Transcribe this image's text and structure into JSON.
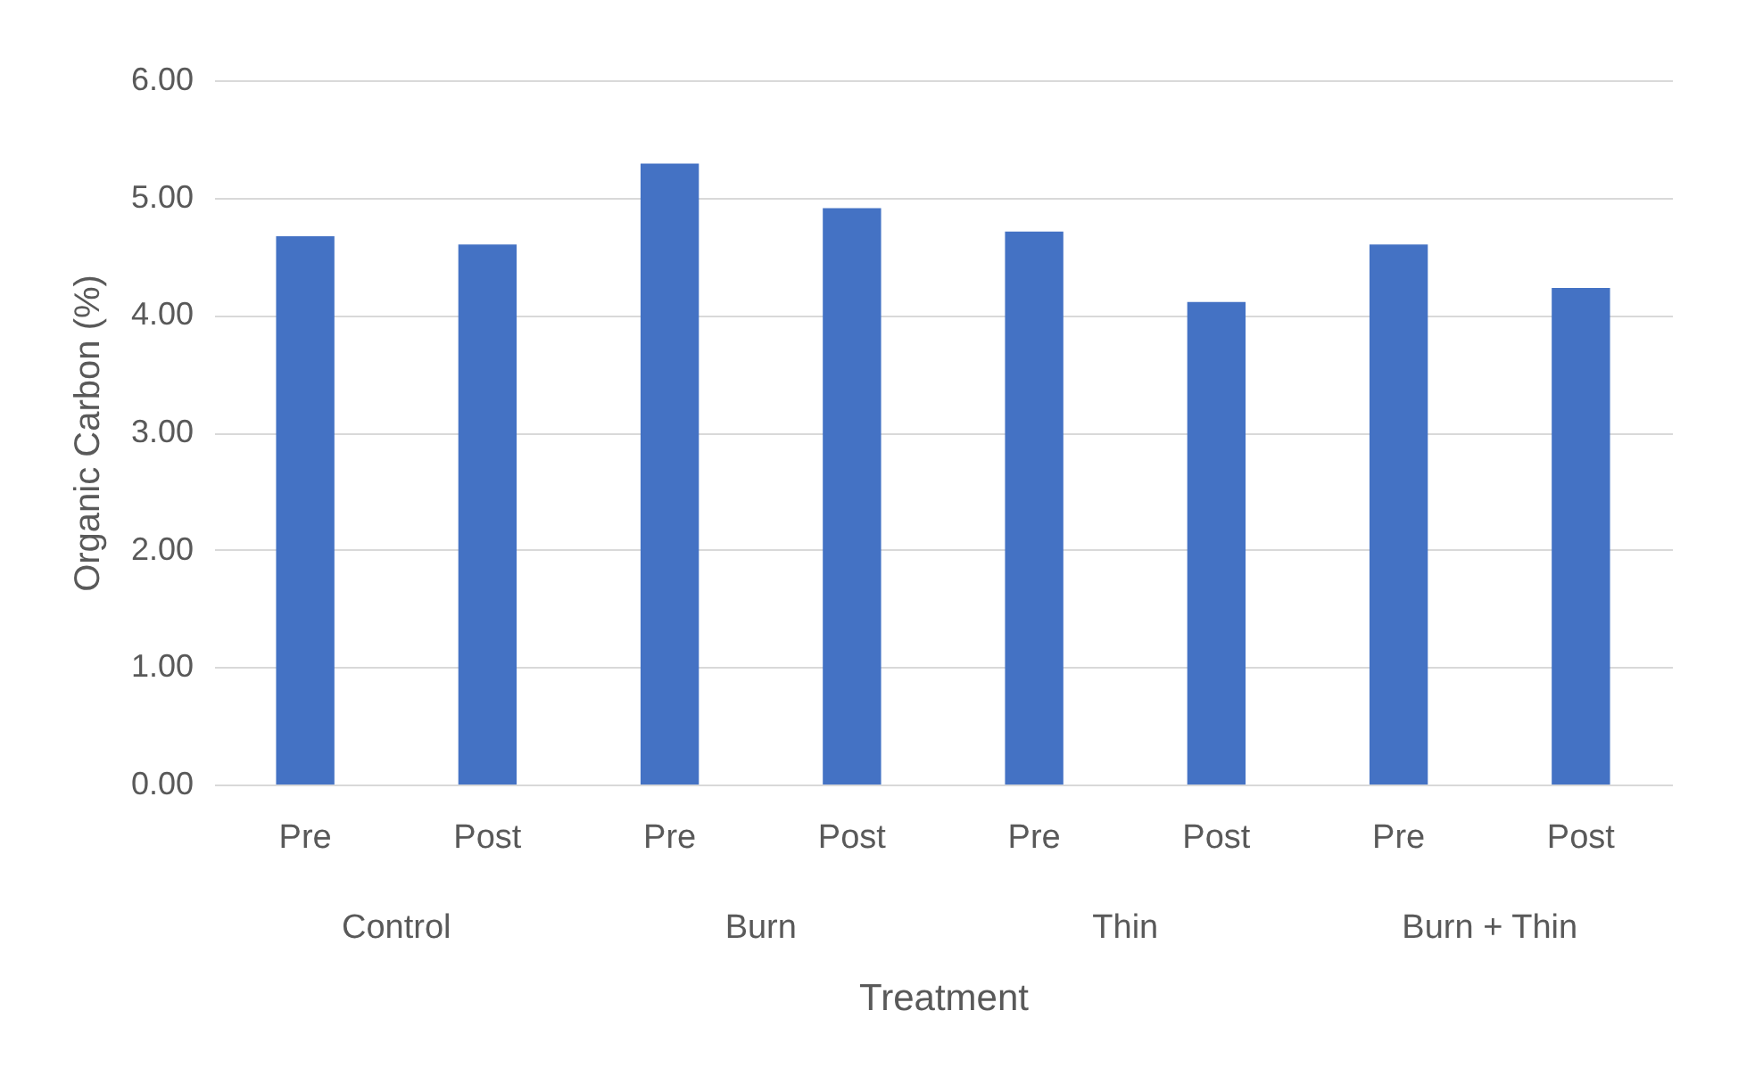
{
  "chart_data": {
    "type": "bar",
    "xlabel": "Treatment",
    "ylabel": "Organic Carbon (%)",
    "categories": [
      "Pre",
      "Post",
      "Pre",
      "Post",
      "Pre",
      "Post",
      "Pre",
      "Post"
    ],
    "values": [
      4.67,
      4.6,
      5.29,
      4.91,
      4.71,
      4.11,
      4.6,
      4.23
    ],
    "color": "#4472c4",
    "ylim": [
      0,
      6
    ],
    "yticks": [
      {
        "value": 0,
        "label": "0.00"
      },
      {
        "value": 1,
        "label": "1.00"
      },
      {
        "value": 2,
        "label": "2.00"
      },
      {
        "value": 3,
        "label": "3.00"
      },
      {
        "value": 4,
        "label": "4.00"
      },
      {
        "value": 5,
        "label": "5.00"
      },
      {
        "value": 6,
        "label": "6.00"
      }
    ],
    "grid": "y",
    "annotations": [
      "Control",
      "Burn",
      "Thin",
      "Burn + Thin"
    ]
  }
}
